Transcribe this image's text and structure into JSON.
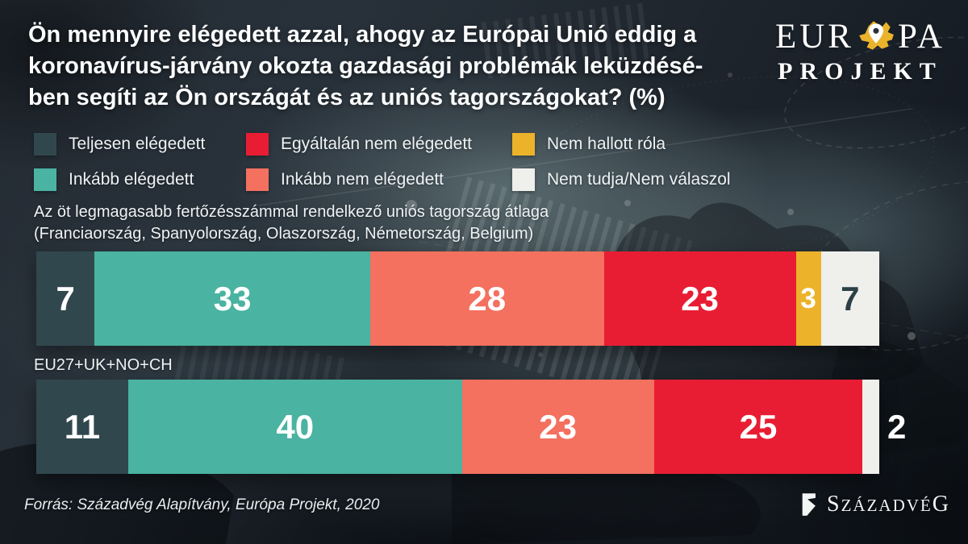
{
  "title": {
    "lines": [
      "Ön mennyire elégedett azzal, ahogy az Európai Unió eddig a",
      "koronavírus-járvány okozta gazdasági problémák leküzdésé-",
      "ben segíti az Ön országát és az uniós tagországokat? (%)"
    ]
  },
  "brand": {
    "line1_pre": "EUR",
    "line1_post": "PA",
    "line2": "PROJEKT",
    "map_icon": "europe-map-pin-icon",
    "map_color": "#eab32b"
  },
  "palette": {
    "fully_satisfied": "#31474e",
    "rather_satisfied": "#4ab3a1",
    "rather_dissatisfied": "#f4705f",
    "not_at_all_satisfied": "#e81d33",
    "not_heard": "#ecb32a",
    "dont_know": "#efefec"
  },
  "legend": {
    "columns": [
      [
        {
          "label": "Teljesen elégedett",
          "color": "#31474e"
        },
        {
          "label": "Inkább elégedett",
          "color": "#4ab3a1"
        }
      ],
      [
        {
          "label": "Egyáltalán nem elégedett",
          "color": "#e81d33"
        },
        {
          "label": "Inkább nem elégedett",
          "color": "#f4705f"
        }
      ],
      [
        {
          "label": "Nem hallott róla",
          "color": "#ecb32a"
        },
        {
          "label": "Nem tudja/Nem válaszol",
          "color": "#efefec"
        }
      ]
    ]
  },
  "chart_data": {
    "type": "bar",
    "stacked": true,
    "orientation": "horizontal",
    "unit": "%",
    "categories": [
      "Az öt legmagasabb fertőzésszámmal rendelkező uniós tagország átlaga (Franciaország, Spanyolország, Olaszország, Németország, Belgium)",
      "EU27+UK+NO+CH"
    ],
    "series": [
      {
        "name": "Teljesen elégedett",
        "color": "#31474e",
        "values": [
          7,
          11
        ]
      },
      {
        "name": "Inkább elégedett",
        "color": "#4ab3a1",
        "values": [
          33,
          40
        ]
      },
      {
        "name": "Inkább nem elégedett",
        "color": "#f4705f",
        "values": [
          28,
          23
        ]
      },
      {
        "name": "Egyáltalán nem elégedett",
        "color": "#e81d33",
        "values": [
          23,
          25
        ]
      },
      {
        "name": "Nem hallott róla",
        "color": "#ecb32a",
        "values": [
          3,
          0
        ]
      },
      {
        "name": "Nem tudja/Nem válaszol",
        "color": "#efefec",
        "values": [
          7,
          2
        ]
      }
    ],
    "legend_position": "top",
    "grid": false
  },
  "rows": [
    {
      "label_lines": [
        "Az öt legmagasabb fertőzésszámmal rendelkező uniós tagország átlaga",
        "(Franciaország, Spanyolország, Olaszország, Németország, Belgium)"
      ],
      "segments": [
        {
          "name": "Teljesen elégedett",
          "value": 7,
          "color": "#31474e",
          "label_color": "#ffffff"
        },
        {
          "name": "Inkább elégedett",
          "value": 33,
          "color": "#4ab3a1",
          "label_color": "#ffffff"
        },
        {
          "name": "Inkább nem elégedett",
          "value": 28,
          "color": "#f4705f",
          "label_color": "#ffffff"
        },
        {
          "name": "Egyáltalán nem elégedett",
          "value": 23,
          "color": "#e81d33",
          "label_color": "#ffffff"
        },
        {
          "name": "Nem hallott róla",
          "value": 3,
          "color": "#ecb32a",
          "label_color": "#ffffff",
          "small": true
        },
        {
          "name": "Nem tudja/Nem válaszol",
          "value": 7,
          "color": "#efefec",
          "label_color": "#2c3f46"
        }
      ]
    },
    {
      "label_lines": [
        "EU27+UK+NO+CH"
      ],
      "segments": [
        {
          "name": "Teljesen elégedett",
          "value": 11,
          "color": "#31474e",
          "label_color": "#ffffff"
        },
        {
          "name": "Inkább elégedett",
          "value": 40,
          "color": "#4ab3a1",
          "label_color": "#ffffff"
        },
        {
          "name": "Inkább nem elégedett",
          "value": 23,
          "color": "#f4705f",
          "label_color": "#ffffff"
        },
        {
          "name": "Egyáltalán nem elégedett",
          "value": 25,
          "color": "#e81d33",
          "label_color": "#ffffff"
        },
        {
          "name": "Nem tudja/Nem válaszol",
          "value": 2,
          "color": "#efefec",
          "label_color": "#ffffff",
          "label_outside": true
        }
      ]
    }
  ],
  "source": "Forrás: Századvég Alapítvány, Európa Projekt, 2020",
  "footer_logo": {
    "first": "S",
    "middle": "ZÁZADVÉ",
    "last": "G"
  }
}
